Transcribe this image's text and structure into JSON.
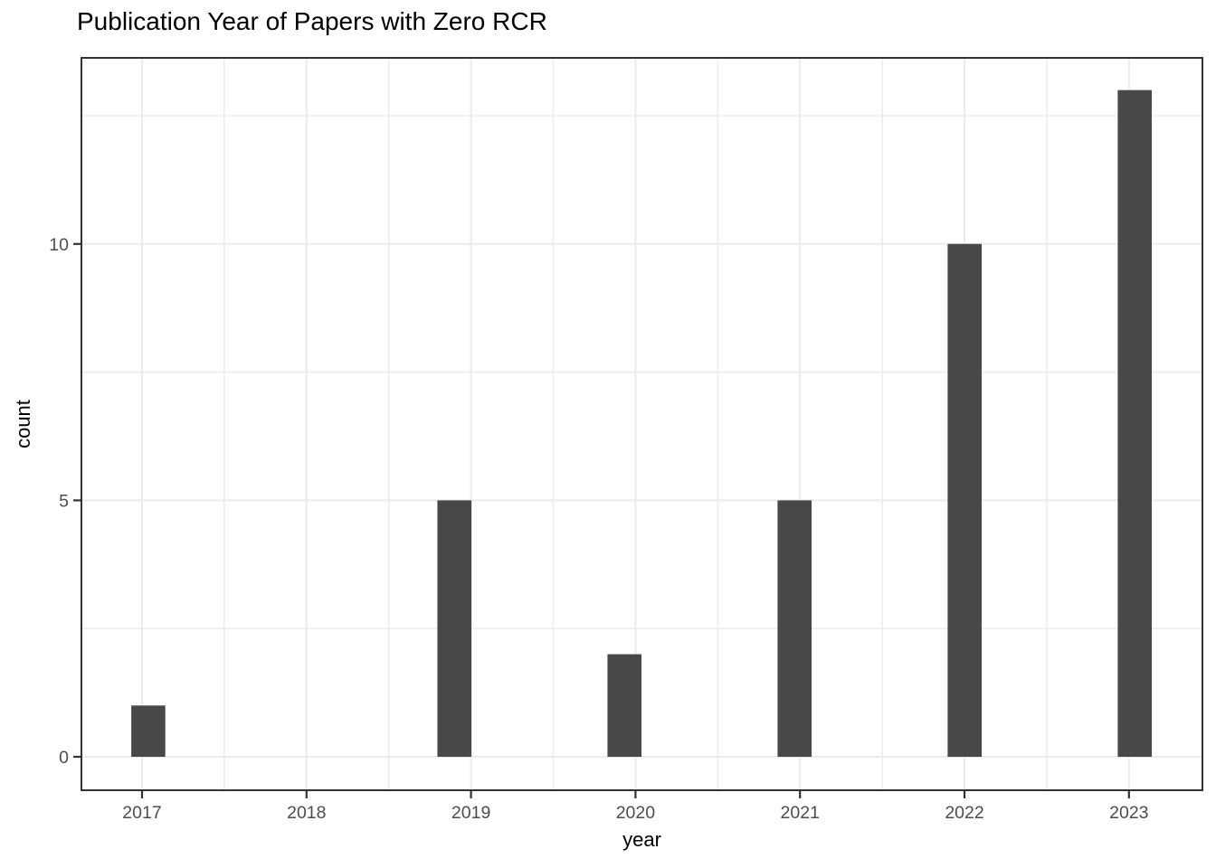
{
  "chart_data": {
    "type": "bar",
    "subtype": "histogram",
    "title": "Publication Year of Papers with Zero RCR",
    "xlabel": "year",
    "ylabel": "count",
    "categories": [
      "2017",
      "2018",
      "2019",
      "2020",
      "2021",
      "2022",
      "2023"
    ],
    "values": [
      1,
      0,
      5,
      2,
      5,
      10,
      13
    ],
    "bars": [
      {
        "x_center": 2017.038,
        "count": 1
      },
      {
        "x_center": 2018.899,
        "count": 5
      },
      {
        "x_center": 2019.933,
        "count": 2
      },
      {
        "x_center": 2020.967,
        "count": 5
      },
      {
        "x_center": 2022.001,
        "count": 10
      },
      {
        "x_center": 2023.035,
        "count": 13
      }
    ],
    "bar_width": 0.2068,
    "xlim": [
      2016.626,
      2023.452
    ],
    "ylim": [
      -0.67,
      13.646
    ],
    "xticks": [
      2017,
      2018,
      2019,
      2020,
      2021,
      2022,
      2023
    ],
    "yticks": [
      0,
      5,
      10
    ],
    "xminor": [
      2017.5,
      2018.5,
      2019.5,
      2020.5,
      2021.5,
      2022.5
    ],
    "yminor": [
      2.5,
      7.5,
      12.5
    ],
    "grid": "major-and-minor",
    "legend": "none",
    "colors": {
      "bar_fill": "#484848",
      "grid_major": "#EBEBEB",
      "grid_minor": "#EDEDED",
      "panel_border": "#333333",
      "tick_mark": "#333333",
      "tick_label": "#4D4D4D",
      "axis_title": "#000000",
      "title": "#000000",
      "panel_bg": "#FFFFFF",
      "page_bg": "#FFFFFF"
    }
  }
}
